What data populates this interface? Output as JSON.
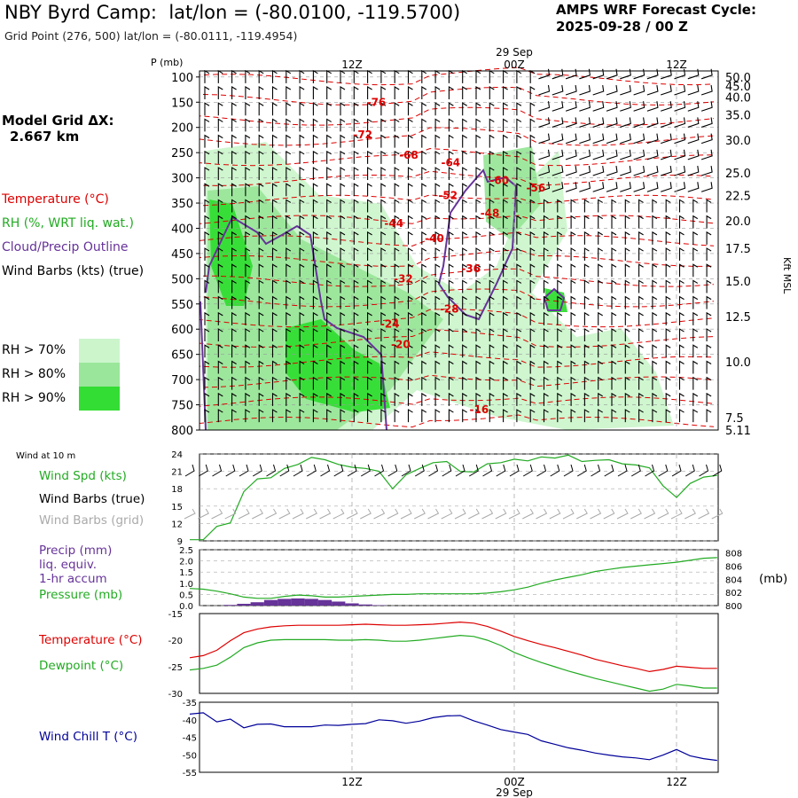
{
  "header": {
    "station": "NBY Byrd Camp:",
    "latlon": "lat/lon = (-80.0100, -119.5700)",
    "grid_point": "Grid Point (276, 500) lat/lon = (-80.0111, -119.4954)",
    "cycle_line1": "AMPS WRF Forecast Cycle:",
    "cycle_line2": "2025-09-28 / 00  Z"
  },
  "side": {
    "model_grid_line1": "Model Grid ΔX:",
    "model_grid_line2": "2.667 km",
    "legend_temperature": "Temperature (°C)",
    "legend_rh": "RH (%, WRT liq. wat.)",
    "legend_cloud": "Cloud/Precip Outline",
    "legend_barbs": "Wind Barbs (kts) (true)",
    "rh70": "RH > 70%",
    "rh80": "RH > 80%",
    "rh90": "RH > 90%"
  },
  "colors": {
    "temperature": "#dd0000",
    "rh70": "#ccf5cc",
    "rh80": "#9ae69a",
    "rh90": "#33dd33",
    "cloud": "#663399",
    "wind": "#22aa22",
    "precip": "#663399",
    "windchill": "#000099",
    "gridbarb": "#aaaaaa"
  },
  "time_axis": {
    "top_date": "29 Sep",
    "bottom_date": "29 Sep",
    "ticks": [
      "12Z",
      "00Z",
      "12Z"
    ],
    "tick_hours": [
      12,
      24,
      36
    ]
  },
  "chart_data": [
    {
      "id": "cross_section",
      "type": "contour",
      "ylabel": "P (mb)",
      "right_label": "Kft MSL",
      "pressure_ticks": [
        100,
        150,
        200,
        250,
        300,
        350,
        400,
        450,
        500,
        550,
        600,
        650,
        700,
        750,
        800
      ],
      "kft_ticks": [
        "50.0",
        "45.0",
        "40.0",
        "35.0",
        "30.0",
        "25.0",
        "22.5",
        "20.0",
        "17.5",
        "15.0",
        "12.5",
        "10.0",
        "7.5",
        "5.11"
      ],
      "kft_pressures": [
        100,
        118,
        140,
        175,
        225,
        290,
        335,
        385,
        440,
        505,
        575,
        665,
        775,
        800
      ],
      "temp_labels": [
        {
          "text": "-76",
          "hour": 13.8,
          "p": 150
        },
        {
          "text": "-72",
          "hour": 12.8,
          "p": 215
        },
        {
          "text": "-68",
          "hour": 16.2,
          "p": 255
        },
        {
          "text": "-64",
          "hour": 19.3,
          "p": 270
        },
        {
          "text": "-60",
          "hour": 22.9,
          "p": 305
        },
        {
          "text": "-56",
          "hour": 25.6,
          "p": 320
        },
        {
          "text": "-52",
          "hour": 19.1,
          "p": 335
        },
        {
          "text": "-48",
          "hour": 22.2,
          "p": 370
        },
        {
          "text": "-44",
          "hour": 15.1,
          "p": 390
        },
        {
          "text": "-40",
          "hour": 18.1,
          "p": 420
        },
        {
          "text": "-36",
          "hour": 20.8,
          "p": 480
        },
        {
          "text": "-32",
          "hour": 15.8,
          "p": 500
        },
        {
          "text": "-28",
          "hour": 19.2,
          "p": 560
        },
        {
          "text": "-24",
          "hour": 14.8,
          "p": 590
        },
        {
          "text": "-20",
          "hour": 15.6,
          "p": 630
        },
        {
          "text": "-16",
          "hour": 21.4,
          "p": 760
        }
      ]
    },
    {
      "id": "wind_10m",
      "type": "line",
      "label_top": "Wind at 10 m",
      "label_speed": "Wind Spd (kts)",
      "label_barbs_true": "Wind Barbs (true)",
      "label_barbs_grid": "Wind Barbs (grid)",
      "ylim": [
        9,
        24
      ],
      "yticks": [
        9,
        12,
        15,
        18,
        21,
        24
      ],
      "hours": [
        0,
        1,
        2,
        3,
        4,
        5,
        6,
        7,
        8,
        9,
        10,
        11,
        12,
        13,
        14,
        15,
        16,
        17,
        18,
        19,
        20,
        21,
        22,
        23,
        24,
        25,
        26,
        27,
        28,
        29,
        30,
        31,
        32,
        33,
        34,
        35,
        36,
        37,
        38,
        39
      ],
      "speed": [
        9.2,
        9.2,
        11.5,
        12.1,
        17.5,
        19.7,
        19.9,
        21.5,
        22.2,
        23.4,
        23.0,
        22.2,
        21.7,
        21.5,
        21.0,
        18.0,
        20.4,
        21.5,
        22.5,
        22.7,
        21.0,
        20.9,
        22.3,
        22.5,
        23.1,
        22.8,
        23.5,
        23.3,
        23.8,
        22.7,
        22.9,
        23.0,
        22.3,
        22.1,
        21.6,
        18.5,
        16.5,
        18.9,
        20.0,
        20.3
      ]
    },
    {
      "id": "precip_pressure",
      "type": "bar+line",
      "label_precip": "Precip (mm)",
      "label_liq": "liq. equiv.",
      "label_accum": "1-hr accum",
      "label_pressure": "Pressure (mb)",
      "right_unit": "(mb)",
      "ylim_precip": [
        0,
        2.5
      ],
      "yticks_precip": [
        "0.0",
        "0.5",
        "1.0",
        "1.5",
        "2.0",
        "2.5"
      ],
      "ylim_pressure": [
        800,
        808.5
      ],
      "yticks_pressure": [
        800,
        802,
        804,
        806,
        808
      ],
      "hours": [
        0,
        1,
        2,
        3,
        4,
        5,
        6,
        7,
        8,
        9,
        10,
        11,
        12,
        13,
        14,
        15,
        16,
        17,
        18,
        19,
        20,
        21,
        22,
        23,
        24,
        25,
        26,
        27,
        28,
        29,
        30,
        31,
        32,
        33,
        34,
        35,
        36,
        37,
        38,
        39
      ],
      "precip": [
        0,
        0,
        0,
        0.03,
        0.08,
        0.15,
        0.25,
        0.3,
        0.32,
        0.3,
        0.25,
        0.18,
        0.1,
        0.05,
        0.02,
        0,
        0,
        0,
        0,
        0,
        0,
        0,
        0,
        0,
        0,
        0,
        0,
        0,
        0,
        0,
        0,
        0,
        0,
        0,
        0,
        0,
        0,
        0,
        0,
        0
      ],
      "pressure": [
        802.6,
        802.5,
        802.2,
        801.8,
        801.3,
        801.1,
        801.1,
        801.4,
        801.6,
        801.5,
        801.3,
        801.3,
        801.4,
        801.5,
        801.6,
        801.7,
        801.7,
        801.8,
        801.8,
        801.8,
        801.8,
        801.8,
        801.9,
        802.1,
        802.4,
        802.8,
        803.4,
        803.9,
        804.3,
        804.7,
        805.2,
        805.5,
        805.8,
        806.0,
        806.2,
        806.4,
        806.6,
        806.9,
        807.2,
        807.3
      ]
    },
    {
      "id": "temp_dewpoint",
      "type": "line",
      "label_temp": "Temperature (°C)",
      "label_dew": "Dewpoint (°C)",
      "ylim": [
        -30,
        -15
      ],
      "yticks": [
        -30,
        -25,
        -20,
        -15
      ],
      "hours": [
        0,
        1,
        2,
        3,
        4,
        5,
        6,
        7,
        8,
        9,
        10,
        11,
        12,
        13,
        14,
        15,
        16,
        17,
        18,
        19,
        20,
        21,
        22,
        23,
        24,
        25,
        26,
        27,
        28,
        29,
        30,
        31,
        32,
        33,
        34,
        35,
        36,
        37,
        38,
        39
      ],
      "temperature": [
        -23.3,
        -22.9,
        -21.9,
        -20.1,
        -18.6,
        -17.9,
        -17.5,
        -17.3,
        -17.2,
        -17.2,
        -17.2,
        -17.2,
        -17.1,
        -17.0,
        -17.1,
        -17.2,
        -17.2,
        -17.1,
        -17.0,
        -16.8,
        -16.6,
        -16.8,
        -17.4,
        -18.3,
        -19.3,
        -20.1,
        -20.8,
        -21.4,
        -22.1,
        -22.8,
        -23.6,
        -24.2,
        -24.8,
        -25.3,
        -25.9,
        -25.5,
        -24.9,
        -25.1,
        -25.3,
        -25.3
      ],
      "dewpoint": [
        -25.6,
        -25.3,
        -24.7,
        -23.2,
        -21.4,
        -20.5,
        -20.0,
        -19.9,
        -19.9,
        -19.9,
        -19.9,
        -20.0,
        -20.0,
        -19.9,
        -20.0,
        -20.2,
        -20.2,
        -20.0,
        -19.7,
        -19.4,
        -19.1,
        -19.3,
        -20.0,
        -21.0,
        -22.3,
        -23.3,
        -24.2,
        -25.0,
        -25.8,
        -26.5,
        -27.2,
        -27.8,
        -28.4,
        -29.0,
        -29.6,
        -29.2,
        -28.3,
        -28.6,
        -29.0,
        -29.0
      ]
    },
    {
      "id": "wind_chill",
      "type": "line",
      "label": "Wind Chill T (°C)",
      "ylim": [
        -55,
        -35
      ],
      "yticks": [
        -55,
        -50,
        -45,
        -40,
        -35
      ],
      "hours": [
        0,
        1,
        2,
        3,
        4,
        5,
        6,
        7,
        8,
        9,
        10,
        11,
        12,
        13,
        14,
        15,
        16,
        17,
        18,
        19,
        20,
        21,
        22,
        23,
        24,
        25,
        26,
        27,
        28,
        29,
        30,
        31,
        32,
        33,
        34,
        35,
        36,
        37,
        38,
        39
      ],
      "windchill": [
        -38.4,
        -38.0,
        -40.6,
        -39.8,
        -42.3,
        -41.3,
        -41.2,
        -42.0,
        -42.0,
        -42.0,
        -41.5,
        -41.6,
        -41.3,
        -41.1,
        -40.0,
        -40.3,
        -41.0,
        -40.4,
        -39.4,
        -38.9,
        -38.8,
        -40.3,
        -41.5,
        -42.8,
        -43.5,
        -44.2,
        -46.0,
        -47.0,
        -48.0,
        -48.7,
        -49.5,
        -50.1,
        -50.6,
        -50.9,
        -51.4,
        -50.1,
        -48.5,
        -50.3,
        -51.1,
        -51.6
      ]
    }
  ]
}
